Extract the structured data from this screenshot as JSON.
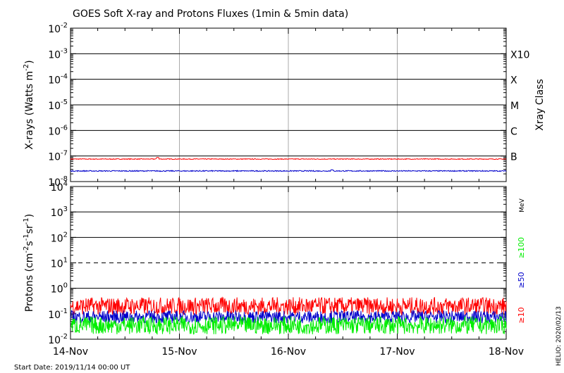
{
  "title": "GOES Soft X-ray and Protons Fluxes   (1min & 5min data)",
  "footer": {
    "start_date": "Start Date: 2019/11/14 00:00 UT",
    "stamp": "HELIO: 2020/02/13"
  },
  "colors": {
    "xray_long": "#ff0000",
    "xray_short": "#0000cc",
    "proton_10": "#ff0000",
    "proton_50": "#0000cc",
    "proton_100": "#00ee00",
    "grid": "#000000",
    "day_line": "#aaaaaa"
  },
  "chart_data": [
    {
      "type": "line",
      "panel": "xray",
      "ylabel": "X-rays (Watts m",
      "ylabel_sup": "-2",
      "ylabel_close": ")",
      "yscale": "log",
      "ylim": [
        1e-08,
        0.01
      ],
      "y_ticks": [
        {
          "base": "10",
          "exp": "-2"
        },
        {
          "base": "10",
          "exp": "-3"
        },
        {
          "base": "10",
          "exp": "-4"
        },
        {
          "base": "10",
          "exp": "-5"
        },
        {
          "base": "10",
          "exp": "-6"
        },
        {
          "base": "10",
          "exp": "-7"
        },
        {
          "base": "10",
          "exp": "-8"
        }
      ],
      "right_axis_title": "Xray Class",
      "class_labels": [
        {
          "label": "X10",
          "level": 0.001
        },
        {
          "label": "X",
          "level": 0.0001
        },
        {
          "label": "M",
          "level": 1e-05
        },
        {
          "label": "C",
          "level": 1e-06
        },
        {
          "label": "B",
          "level": 1e-07
        }
      ],
      "gridlines_y": [
        0.001,
        0.0001,
        1e-05,
        1e-06,
        1e-07
      ],
      "series": [
        {
          "key": "long",
          "level": 7.6e-08,
          "jitter": 0.03,
          "spike_at": 0.8,
          "spike_value": 8.8e-08
        },
        {
          "key": "short",
          "level": 2.6e-08,
          "jitter": 0.04,
          "spike_at": 2.4,
          "spike_value": 2.9e-08
        }
      ]
    },
    {
      "type": "line",
      "panel": "protons",
      "ylabel": "Protons (cm",
      "ylabel_parts": [
        "-2",
        "s",
        "-1",
        "sr",
        "-1"
      ],
      "yscale": "log",
      "ylim": [
        0.01,
        10000
      ],
      "y_ticks": [
        {
          "base": "10",
          "exp": "4"
        },
        {
          "base": "10",
          "exp": "3"
        },
        {
          "base": "10",
          "exp": "2"
        },
        {
          "base": "10",
          "exp": "1"
        },
        {
          "base": "10",
          "exp": "0"
        },
        {
          "base": "10",
          "exp": "-1"
        },
        {
          "base": "10",
          "exp": "-2"
        }
      ],
      "gridlines_y": [
        1000,
        100,
        1
      ],
      "dashed_threshold": 10,
      "energy_unit": "MeV",
      "energy_labels": [
        {
          "label": "≥100",
          "series": "proton_100"
        },
        {
          "label": "≥50",
          "series": "proton_50"
        },
        {
          "label": "≥10",
          "series": "proton_10"
        }
      ],
      "series": [
        {
          "key": "proton_10",
          "level": 0.2,
          "jitter": 0.35
        },
        {
          "key": "proton_50",
          "level": 0.075,
          "jitter": 0.25
        },
        {
          "key": "proton_100",
          "level": 0.035,
          "jitter": 0.35
        }
      ]
    }
  ],
  "x_axis": {
    "tick_labels": [
      "14-Nov",
      "15-Nov",
      "16-Nov",
      "17-Nov",
      "18-Nov"
    ],
    "range_days": [
      0,
      4
    ],
    "day_lines": [
      1,
      2,
      3
    ]
  }
}
